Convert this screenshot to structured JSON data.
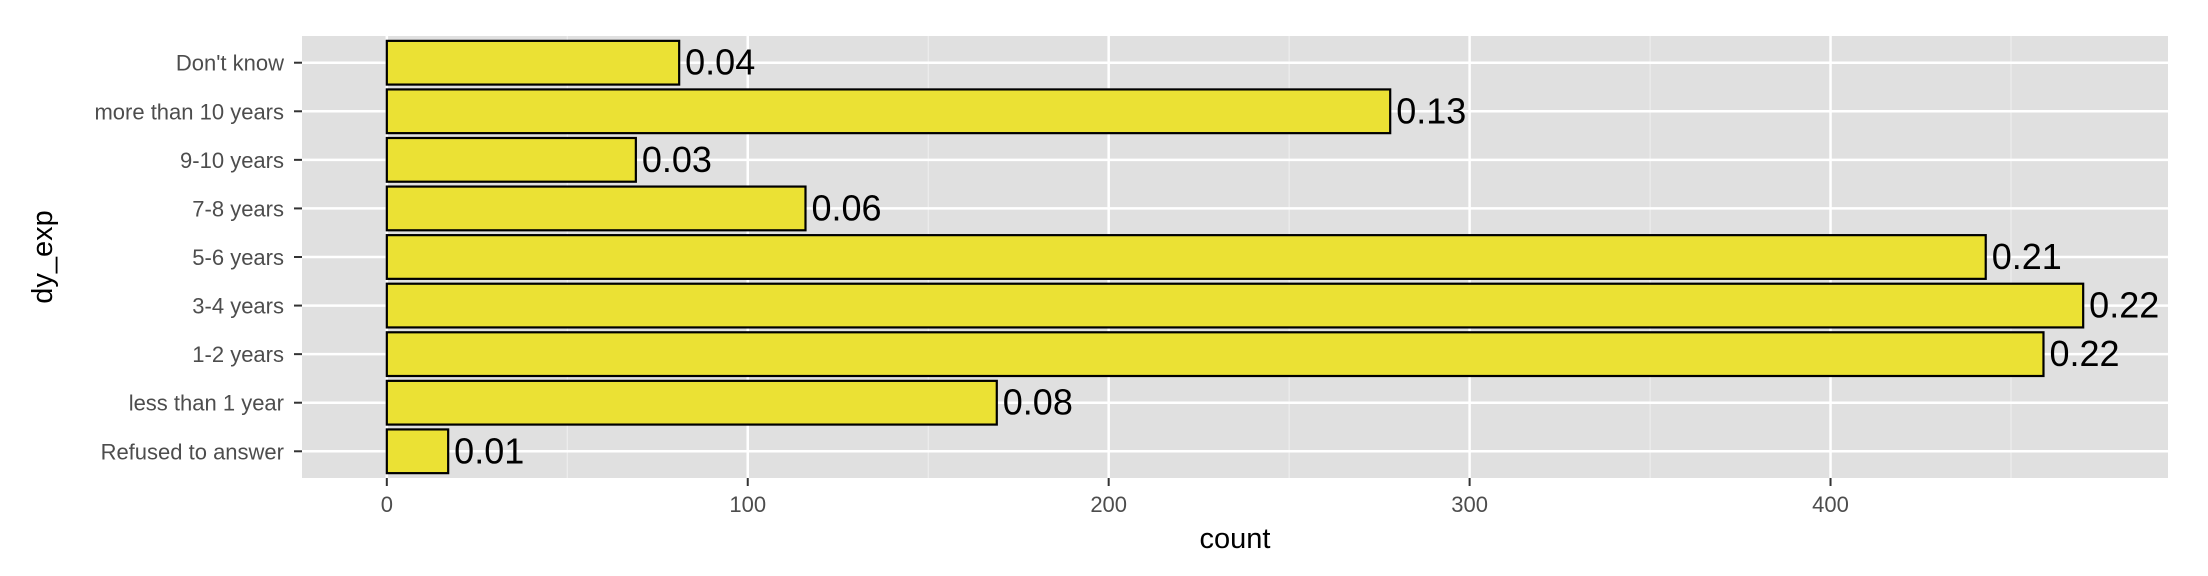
{
  "chart_data": {
    "type": "bar",
    "orientation": "horizontal",
    "title": "",
    "xlabel": "count",
    "ylabel": "dy_exp",
    "categories": [
      "Refused to answer",
      "less than 1 year",
      "1-2 years",
      "3-4 years",
      "5-6 years",
      "7-8 years",
      "9-10 years",
      "more than 10 years",
      "Don't know"
    ],
    "values": [
      17,
      169,
      459,
      470,
      443,
      116,
      69,
      278,
      81
    ],
    "data_labels": [
      "0.01",
      "0.08",
      "0.22",
      "0.22",
      "0.21",
      "0.06",
      "0.03",
      "0.13",
      "0.04"
    ],
    "x_ticks": [
      0,
      100,
      200,
      300,
      400
    ],
    "xlim": [
      -23.5,
      493.5
    ],
    "grid": true,
    "legend": "none",
    "colors": {
      "bar_fill": "#ebe134",
      "bar_stroke": "#000000",
      "panel_background": "#e0e0e0",
      "grid": "#ffffff"
    }
  }
}
